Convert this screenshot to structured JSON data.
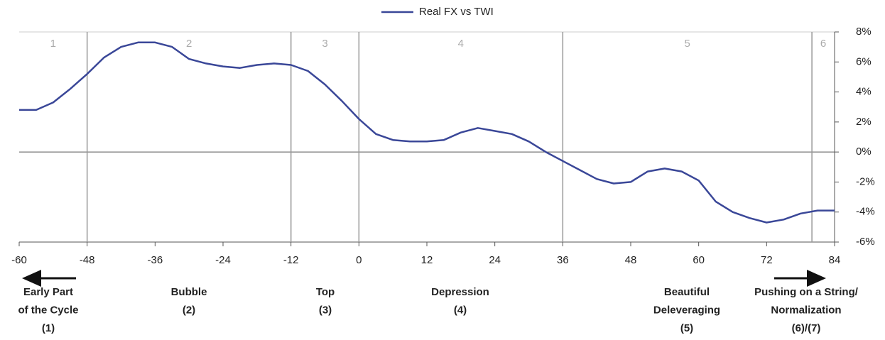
{
  "chart_data": {
    "type": "line",
    "x": [
      -60,
      -57,
      -54,
      -51,
      -48,
      -45,
      -42,
      -39,
      -36,
      -33,
      -30,
      -27,
      -24,
      -21,
      -18,
      -15,
      -12,
      -9,
      -6,
      -3,
      0,
      3,
      6,
      9,
      12,
      15,
      18,
      21,
      24,
      27,
      30,
      33,
      36,
      39,
      42,
      45,
      48,
      51,
      54,
      57,
      60,
      63,
      66,
      69,
      72,
      75,
      78,
      81,
      84
    ],
    "series": [
      {
        "name": "Real FX vs TWI",
        "color": "#3a4798",
        "values": [
          2.8,
          2.8,
          3.3,
          4.2,
          5.2,
          6.3,
          7.0,
          7.3,
          7.3,
          7.0,
          6.2,
          5.9,
          5.7,
          5.6,
          5.8,
          5.9,
          5.8,
          5.4,
          4.5,
          3.4,
          2.2,
          1.2,
          0.8,
          0.7,
          0.7,
          0.8,
          1.3,
          1.6,
          1.4,
          1.2,
          0.7,
          0.0,
          -0.6,
          -1.2,
          -1.8,
          -2.1,
          -2.0,
          -1.3,
          -1.1,
          -1.3,
          -1.9,
          -3.3,
          -4.0,
          -4.4,
          -4.7,
          -4.5,
          -4.1,
          -3.9,
          -3.9
        ]
      }
    ],
    "xlim": [
      -60,
      84
    ],
    "xticks": [
      -60,
      -48,
      -36,
      -24,
      -12,
      0,
      12,
      24,
      36,
      48,
      60,
      72,
      84
    ],
    "ylim": [
      -6,
      8
    ],
    "yticks": [
      {
        "value": 8,
        "label": "8%"
      },
      {
        "value": 6,
        "label": "6%"
      },
      {
        "value": 4,
        "label": "4%"
      },
      {
        "value": 2,
        "label": "2%"
      },
      {
        "value": 0,
        "label": "0%"
      },
      {
        "value": -2,
        "label": "-2%"
      },
      {
        "value": -4,
        "label": "-4%"
      },
      {
        "value": -6,
        "label": "-6%"
      }
    ],
    "phase_lines": [
      -48,
      -12,
      0,
      36,
      80
    ],
    "phase_labels": [
      "1",
      "2",
      "3",
      "4",
      "5",
      "6"
    ],
    "stage_labels": [
      [
        "Early Part",
        "of the Cycle",
        "(1)"
      ],
      [
        "Bubble",
        "(2)"
      ],
      [
        "Top",
        "(3)"
      ],
      [
        "Depression",
        "(4)"
      ],
      [
        "Beautiful",
        "Deleveraging",
        "(5)"
      ],
      [
        "Pushing on a String/",
        "Normalization",
        "(6)/(7)"
      ]
    ]
  }
}
